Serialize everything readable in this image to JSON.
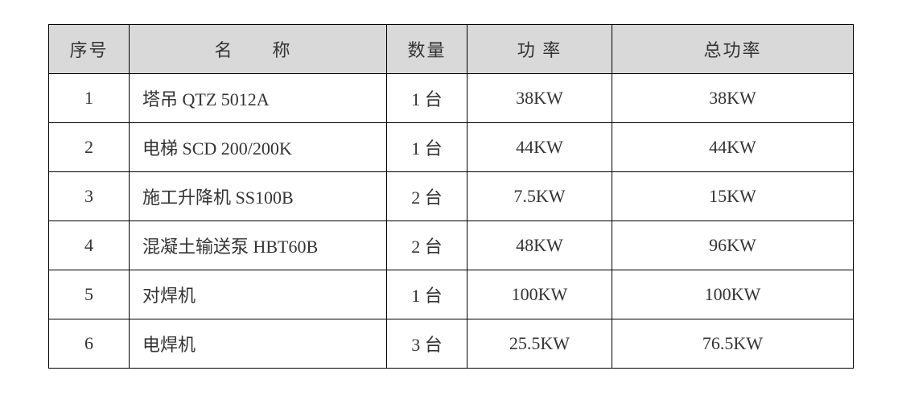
{
  "table": {
    "header_background": "#d9d9d9",
    "border_color": "#000000",
    "text_color": "#333333",
    "font_size_pt": 16,
    "columns": [
      {
        "key": "idx",
        "label": "序号",
        "width_pct": 10,
        "align": "center"
      },
      {
        "key": "name",
        "label": "名　称",
        "width_pct": 32,
        "align": "left"
      },
      {
        "key": "qty",
        "label": "数量",
        "width_pct": 10,
        "align": "center"
      },
      {
        "key": "pwr",
        "label": "功 率",
        "width_pct": 18,
        "align": "center"
      },
      {
        "key": "total",
        "label": "总功率",
        "width_pct": 30,
        "align": "center"
      }
    ],
    "rows": [
      {
        "idx": "1",
        "name": "塔吊 QTZ 5012A",
        "qty": "1 台",
        "pwr": "38KW",
        "total": "38KW"
      },
      {
        "idx": "2",
        "name": "电梯 SCD 200/200K",
        "qty": "1 台",
        "pwr": "44KW",
        "total": "44KW"
      },
      {
        "idx": "3",
        "name": "施工升降机 SS100B",
        "qty": "2 台",
        "pwr": "7.5KW",
        "total": "15KW"
      },
      {
        "idx": "4",
        "name": "混凝土输送泵 HBT60B",
        "qty": "2 台",
        "pwr": "48KW",
        "total": "96KW"
      },
      {
        "idx": "5",
        "name": "对焊机",
        "qty": "1 台",
        "pwr": "100KW",
        "total": "100KW"
      },
      {
        "idx": "6",
        "name": "电焊机",
        "qty": "3 台",
        "pwr": "25.5KW",
        "total": "76.5KW"
      }
    ]
  }
}
